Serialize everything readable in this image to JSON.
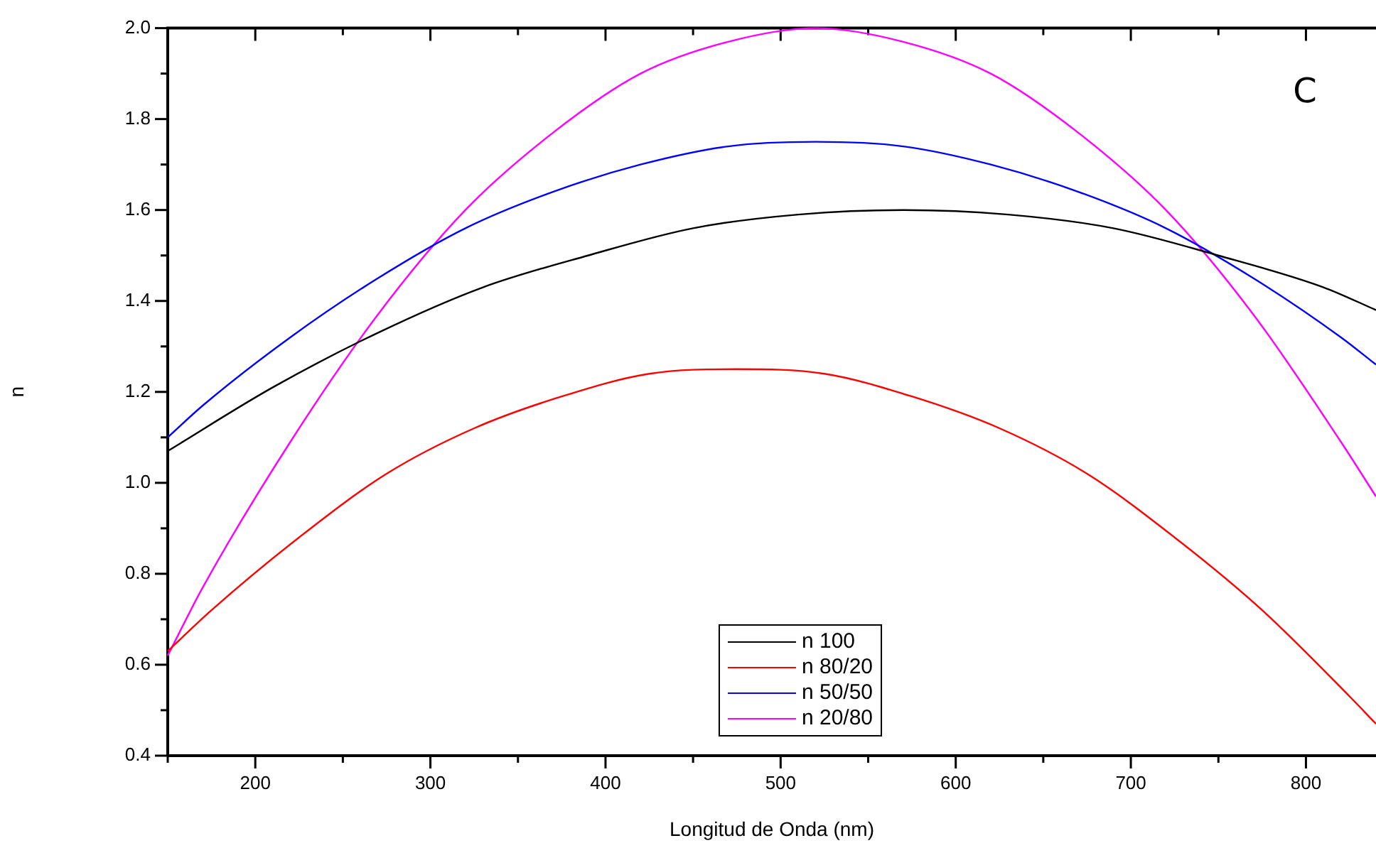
{
  "chart_data": {
    "type": "line",
    "xlabel": "Longitud de Onda (nm)",
    "ylabel": "n",
    "annotations": [
      "C"
    ],
    "series": [
      {
        "name": "n 100",
        "color": "#000000",
        "x": [
          150,
          210,
          270,
          330,
          390,
          450,
          510,
          570,
          630,
          690,
          750,
          810,
          840
        ],
        "values": [
          1.07,
          1.21,
          1.33,
          1.43,
          1.5,
          1.56,
          1.59,
          1.6,
          1.59,
          1.56,
          1.5,
          1.43,
          1.38
        ]
      },
      {
        "name": "n 80/20",
        "color": "#ff0000",
        "x": [
          150,
          175,
          225,
          275,
          325,
          375,
          425,
          475,
          525,
          575,
          625,
          675,
          725,
          775,
          825,
          840
        ],
        "values": [
          0.63,
          0.72,
          0.88,
          1.02,
          1.12,
          1.19,
          1.24,
          1.25,
          1.24,
          1.19,
          1.12,
          1.02,
          0.88,
          0.72,
          0.53,
          0.47
        ]
      },
      {
        "name": "n 50/50",
        "color": "#0000ff",
        "x": [
          150,
          170,
          220,
          270,
          320,
          370,
          420,
          470,
          520,
          570,
          620,
          670,
          720,
          770,
          820,
          840
        ],
        "values": [
          1.1,
          1.17,
          1.32,
          1.45,
          1.56,
          1.64,
          1.7,
          1.74,
          1.75,
          1.74,
          1.7,
          1.64,
          1.56,
          1.45,
          1.32,
          1.26
        ]
      },
      {
        "name": "n 20/80",
        "color": "#ff00ff",
        "x": [
          150,
          170,
          220,
          270,
          320,
          370,
          420,
          470,
          520,
          570,
          620,
          670,
          720,
          770,
          820,
          840
        ],
        "values": [
          0.62,
          0.77,
          1.09,
          1.37,
          1.6,
          1.77,
          1.9,
          1.97,
          2.0,
          1.97,
          1.9,
          1.77,
          1.6,
          1.37,
          1.09,
          0.97
        ]
      }
    ],
    "xlim": [
      150,
      840
    ],
    "xticks": [
      {
        "value": 150,
        "label": null
      },
      200,
      {
        "value": 250,
        "label": null
      },
      300,
      {
        "value": 350,
        "label": null
      },
      400,
      {
        "value": 450,
        "label": null
      },
      500,
      {
        "value": 550,
        "label": null
      },
      600,
      {
        "value": 650,
        "label": null
      },
      700,
      {
        "value": 750,
        "label": null
      },
      800
    ],
    "ylim": [
      0.4,
      2.0
    ],
    "yticks": [
      {
        "value": 0.4,
        "label": "0.4"
      },
      {
        "value": 0.5,
        "label": null
      },
      {
        "value": 0.6,
        "label": "0.6"
      },
      {
        "value": 0.7,
        "label": null
      },
      {
        "value": 0.8,
        "label": "0.8"
      },
      {
        "value": 0.9,
        "label": null
      },
      {
        "value": 1.0,
        "label": "1.0"
      },
      {
        "value": 1.1,
        "label": null
      },
      {
        "value": 1.2,
        "label": "1.2"
      },
      {
        "value": 1.3,
        "label": null
      },
      {
        "value": 1.4,
        "label": "1.4"
      },
      {
        "value": 1.5,
        "label": null
      },
      {
        "value": 1.6,
        "label": "1.6"
      },
      {
        "value": 1.7,
        "label": null
      },
      {
        "value": 1.8,
        "label": "1.8"
      },
      {
        "value": 1.9,
        "label": null
      },
      {
        "value": 2.0,
        "label": "2.0"
      }
    ],
    "grid": false,
    "legend": "bottom",
    "marker": "none",
    "line_style": "solid"
  }
}
